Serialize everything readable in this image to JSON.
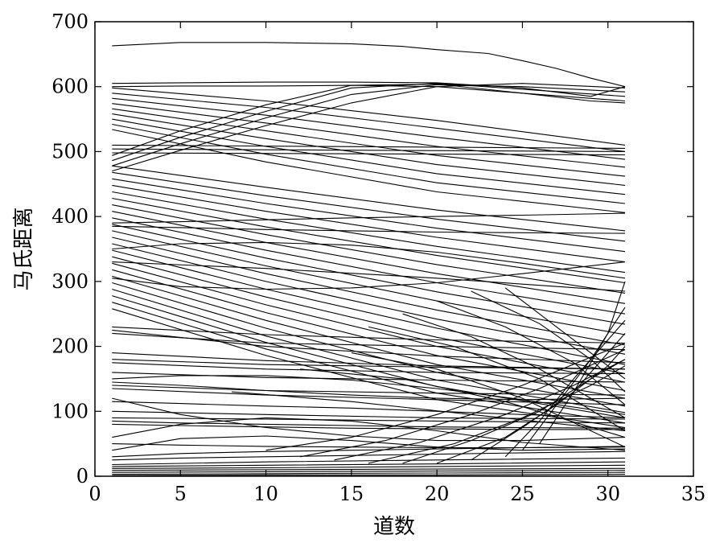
{
  "chart_data": {
    "type": "line",
    "title": "",
    "xlabel": "道数",
    "ylabel": "马氏距离",
    "xlim": [
      0,
      35
    ],
    "ylim": [
      0,
      700
    ],
    "xticks": [
      "0",
      "5",
      "10",
      "15",
      "20",
      "25",
      "30",
      "35"
    ],
    "yticks": [
      "0",
      "100",
      "200",
      "300",
      "400",
      "500",
      "600",
      "700"
    ],
    "grid": false,
    "legend": "none",
    "line_color": "#000000",
    "x_range_of_series": [
      1,
      31
    ],
    "series": [
      {
        "x": [
          1,
          5,
          10,
          15,
          18,
          20,
          23,
          25,
          27,
          29,
          31
        ],
        "y": [
          663,
          668,
          668,
          666,
          662,
          657,
          651,
          640,
          628,
          613,
          600
        ]
      },
      {
        "x": [
          1,
          5,
          10,
          15,
          20,
          25,
          29,
          31
        ],
        "y": [
          605,
          606,
          607,
          607,
          606,
          598,
          585,
          600
        ]
      },
      {
        "x": [
          1,
          5,
          10,
          15,
          20,
          25,
          29,
          31
        ],
        "y": [
          600,
          601,
          601,
          602,
          600,
          590,
          578,
          575
        ]
      },
      {
        "x": [
          1,
          5,
          10,
          15,
          20,
          25,
          31
        ],
        "y": [
          470,
          502,
          540,
          575,
          600,
          605,
          598
        ]
      },
      {
        "x": [
          1,
          5,
          10,
          15,
          20,
          25,
          31
        ],
        "y": [
          478,
          512,
          552,
          588,
          603,
          600,
          592
        ]
      },
      {
        "x": [
          1,
          5,
          10,
          15,
          20,
          25,
          31
        ],
        "y": [
          486,
          522,
          562,
          598,
          605,
          596,
          585
        ]
      },
      {
        "x": [
          1,
          5,
          10,
          15,
          20,
          25,
          31
        ],
        "y": [
          494,
          532,
          572,
          602,
          604,
          590,
          578
        ]
      },
      {
        "x": [
          1,
          10,
          20,
          31
        ],
        "y": [
          598,
          578,
          548,
          510
        ]
      },
      {
        "x": [
          1,
          10,
          20,
          31
        ],
        "y": [
          590,
          568,
          536,
          500
        ]
      },
      {
        "x": [
          1,
          10,
          20,
          31
        ],
        "y": [
          582,
          556,
          522,
          488
        ]
      },
      {
        "x": [
          1,
          10,
          20,
          31
        ],
        "y": [
          574,
          544,
          508,
          476
        ]
      },
      {
        "x": [
          1,
          10,
          20,
          31
        ],
        "y": [
          566,
          532,
          494,
          462
        ]
      },
      {
        "x": [
          1,
          10,
          20,
          31
        ],
        "y": [
          558,
          520,
          480,
          448
        ]
      },
      {
        "x": [
          1,
          10,
          20,
          31
        ],
        "y": [
          550,
          508,
          466,
          434
        ]
      },
      {
        "x": [
          1,
          10,
          20,
          31
        ],
        "y": [
          542,
          496,
          452,
          420
        ]
      },
      {
        "x": [
          1,
          10,
          20,
          31
        ],
        "y": [
          534,
          484,
          438,
          406
        ]
      },
      {
        "x": [
          1,
          31
        ],
        "y": [
          510,
          505
        ]
      },
      {
        "x": [
          1,
          31
        ],
        "y": [
          504,
          500
        ]
      },
      {
        "x": [
          1,
          31
        ],
        "y": [
          498,
          495
        ]
      },
      {
        "x": [
          1,
          10,
          20,
          31
        ],
        "y": [
          478,
          445,
          410,
          378
        ]
      },
      {
        "x": [
          1,
          10,
          20,
          31
        ],
        "y": [
          468,
          432,
          396,
          362
        ]
      },
      {
        "x": [
          1,
          10,
          20,
          31
        ],
        "y": [
          458,
          420,
          382,
          346
        ]
      },
      {
        "x": [
          1,
          10,
          20,
          31
        ],
        "y": [
          448,
          408,
          368,
          330
        ]
      },
      {
        "x": [
          1,
          10,
          20,
          31
        ],
        "y": [
          438,
          396,
          354,
          314
        ]
      },
      {
        "x": [
          1,
          10,
          20,
          31
        ],
        "y": [
          428,
          384,
          340,
          298
        ]
      },
      {
        "x": [
          1,
          10,
          20,
          31
        ],
        "y": [
          418,
          372,
          326,
          282
        ]
      },
      {
        "x": [
          1,
          10,
          20,
          31
        ],
        "y": [
          408,
          360,
          312,
          266
        ]
      },
      {
        "x": [
          1,
          10,
          20,
          31
        ],
        "y": [
          398,
          348,
          298,
          250
        ]
      },
      {
        "x": [
          1,
          10,
          20,
          31
        ],
        "y": [
          388,
          336,
          284,
          234
        ]
      },
      {
        "x": [
          1,
          10,
          20,
          31
        ],
        "y": [
          378,
          324,
          270,
          218
        ]
      },
      {
        "x": [
          1,
          10,
          20,
          31
        ],
        "y": [
          368,
          312,
          256,
          202
        ]
      },
      {
        "x": [
          1,
          10,
          20,
          31
        ],
        "y": [
          358,
          300,
          242,
          188
        ]
      },
      {
        "x": [
          1,
          10,
          20,
          31
        ],
        "y": [
          348,
          288,
          228,
          172
        ]
      },
      {
        "x": [
          1,
          10,
          20,
          31
        ],
        "y": [
          338,
          276,
          214,
          158
        ]
      },
      {
        "x": [
          1,
          10,
          20,
          31
        ],
        "y": [
          328,
          264,
          200,
          145
        ]
      },
      {
        "x": [
          1,
          10,
          20,
          31
        ],
        "y": [
          318,
          252,
          186,
          132
        ]
      },
      {
        "x": [
          1,
          10,
          20,
          31
        ],
        "y": [
          308,
          240,
          172,
          120
        ]
      },
      {
        "x": [
          1,
          10,
          20,
          31
        ],
        "y": [
          298,
          228,
          160,
          108
        ]
      },
      {
        "x": [
          1,
          10,
          20,
          31
        ],
        "y": [
          288,
          216,
          148,
          98
        ]
      },
      {
        "x": [
          1,
          10,
          20,
          31
        ],
        "y": [
          278,
          206,
          138,
          90
        ]
      },
      {
        "x": [
          1,
          10,
          20,
          31
        ],
        "y": [
          268,
          196,
          128,
          82
        ]
      },
      {
        "x": [
          1,
          10,
          20,
          31
        ],
        "y": [
          258,
          186,
          118,
          75
        ]
      },
      {
        "x": [
          1,
          5,
          10,
          15,
          20,
          25,
          31
        ],
        "y": [
          390,
          392,
          395,
          398,
          400,
          402,
          405
        ]
      },
      {
        "x": [
          1,
          5,
          10,
          15,
          20,
          25,
          31
        ],
        "y": [
          385,
          383,
          380,
          378,
          376,
          375,
          374
        ]
      },
      {
        "x": [
          1,
          5,
          10,
          15,
          20,
          25,
          31
        ],
        "y": [
          305,
          292,
          288,
          290,
          298,
          312,
          330
        ]
      },
      {
        "x": [
          1,
          5,
          10,
          15,
          20,
          25,
          31
        ],
        "y": [
          350,
          358,
          360,
          356,
          345,
          328,
          305
        ]
      },
      {
        "x": [
          1,
          10,
          20,
          31
        ],
        "y": [
          330,
          320,
          305,
          285
        ]
      },
      {
        "x": [
          1,
          10,
          20,
          31
        ],
        "y": [
          230,
          218,
          210,
          205
        ]
      },
      {
        "x": [
          1,
          10,
          20,
          31
        ],
        "y": [
          225,
          200,
          185,
          175
        ]
      },
      {
        "x": [
          1,
          10,
          20,
          31
        ],
        "y": [
          220,
          205,
          200,
          195
        ]
      },
      {
        "x": [
          1,
          10,
          20,
          31
        ],
        "y": [
          190,
          178,
          170,
          165
        ]
      },
      {
        "x": [
          1,
          10,
          20,
          31
        ],
        "y": [
          180,
          172,
          168,
          165
        ]
      },
      {
        "x": [
          1,
          10,
          20,
          31
        ],
        "y": [
          175,
          165,
          160,
          158
        ]
      },
      {
        "x": [
          1,
          10,
          20,
          31
        ],
        "y": [
          160,
          152,
          148,
          145
        ]
      },
      {
        "x": [
          1,
          5,
          10,
          15,
          20,
          25,
          31
        ],
        "y": [
          150,
          155,
          155,
          148,
          135,
          118,
          95
        ]
      },
      {
        "x": [
          1,
          5,
          10,
          15,
          20,
          25,
          31
        ],
        "y": [
          145,
          140,
          132,
          125,
          120,
          118,
          120
        ]
      },
      {
        "x": [
          1,
          10,
          20,
          31
        ],
        "y": [
          140,
          132,
          128,
          125
        ]
      },
      {
        "x": [
          1,
          10,
          20,
          31
        ],
        "y": [
          135,
          125,
          118,
          110
        ]
      },
      {
        "x": [
          1,
          5,
          10,
          15,
          20,
          25,
          31
        ],
        "y": [
          120,
          95,
          75,
          62,
          55,
          55,
          60
        ]
      },
      {
        "x": [
          1,
          5,
          10,
          15,
          20,
          25,
          31
        ],
        "y": [
          115,
          112,
          108,
          105,
          100,
          95,
          90
        ]
      },
      {
        "x": [
          1,
          10,
          20,
          31
        ],
        "y": [
          100,
          95,
          90,
          88
        ]
      },
      {
        "x": [
          1,
          10,
          20,
          31
        ],
        "y": [
          90,
          88,
          85,
          82
        ]
      },
      {
        "x": [
          1,
          5,
          10,
          15,
          20,
          25,
          31
        ],
        "y": [
          85,
          82,
          80,
          78,
          76,
          75,
          74
        ]
      },
      {
        "x": [
          1,
          5,
          10,
          15,
          20,
          25,
          31
        ],
        "y": [
          80,
          78,
          76,
          74,
          73,
          72,
          72
        ]
      },
      {
        "x": [
          1,
          5,
          10,
          15,
          20,
          25,
          31
        ],
        "y": [
          60,
          80,
          90,
          85,
          70,
          52,
          40
        ]
      },
      {
        "x": [
          1,
          5,
          10,
          15,
          20,
          25,
          31
        ],
        "y": [
          50,
          48,
          46,
          45,
          44,
          44,
          45
        ]
      },
      {
        "x": [
          1,
          5,
          10,
          15,
          20,
          25,
          31
        ],
        "y": [
          40,
          58,
          62,
          55,
          45,
          40,
          42
        ]
      },
      {
        "x": [
          1,
          5,
          10,
          15,
          20,
          25,
          31
        ],
        "y": [
          30,
          35,
          38,
          40,
          42,
          44,
          46
        ]
      },
      {
        "x": [
          1,
          5,
          10,
          15,
          20,
          25,
          31
        ],
        "y": [
          25,
          28,
          30,
          32,
          34,
          36,
          38
        ]
      },
      {
        "x": [
          1,
          10,
          20,
          31
        ],
        "y": [
          18,
          22,
          25,
          28
        ]
      },
      {
        "x": [
          1,
          10,
          20,
          31
        ],
        "y": [
          15,
          17,
          19,
          22
        ]
      },
      {
        "x": [
          1,
          10,
          20,
          31
        ],
        "y": [
          12,
          13,
          15,
          17
        ]
      },
      {
        "x": [
          1,
          10,
          20,
          31
        ],
        "y": [
          9,
          10,
          11,
          12
        ]
      },
      {
        "x": [
          1,
          10,
          20,
          31
        ],
        "y": [
          6,
          7,
          8,
          9
        ]
      },
      {
        "x": [
          1,
          10,
          20,
          31
        ],
        "y": [
          3,
          4,
          5,
          6
        ]
      },
      {
        "x": [
          1,
          10,
          20,
          31
        ],
        "y": [
          1,
          2,
          2,
          3
        ]
      },
      {
        "x": [
          10,
          15,
          20,
          25,
          31
        ],
        "y": [
          40,
          60,
          95,
          140,
          205
        ]
      },
      {
        "x": [
          12,
          17,
          22,
          26,
          31
        ],
        "y": [
          30,
          55,
          95,
          135,
          195
        ]
      },
      {
        "x": [
          14,
          19,
          24,
          28,
          31
        ],
        "y": [
          25,
          52,
          95,
          140,
          180
        ]
      },
      {
        "x": [
          16,
          21,
          25,
          29,
          31
        ],
        "y": [
          20,
          50,
          90,
          140,
          170
        ]
      },
      {
        "x": [
          18,
          22,
          26,
          29,
          31
        ],
        "y": [
          20,
          55,
          100,
          150,
          180
        ]
      },
      {
        "x": [
          20,
          24,
          27,
          30,
          31
        ],
        "y": [
          20,
          60,
          110,
          170,
          200
        ]
      },
      {
        "x": [
          22,
          25,
          28,
          30,
          31
        ],
        "y": [
          25,
          75,
          130,
          190,
          220
        ]
      },
      {
        "x": [
          24,
          26,
          28,
          30,
          31
        ],
        "y": [
          30,
          85,
          150,
          210,
          240
        ]
      },
      {
        "x": [
          25,
          27,
          29,
          31
        ],
        "y": [
          40,
          110,
          180,
          260
        ]
      },
      {
        "x": [
          26,
          28,
          30,
          31
        ],
        "y": [
          50,
          130,
          220,
          300
        ]
      },
      {
        "x": [
          15,
          20,
          25,
          31
        ],
        "y": [
          190,
          165,
          120,
          45
        ]
      },
      {
        "x": [
          16,
          21,
          26,
          31
        ],
        "y": [
          230,
          200,
          150,
          70
        ]
      },
      {
        "x": [
          18,
          22,
          26,
          31
        ],
        "y": [
          250,
          215,
          165,
          90
        ]
      },
      {
        "x": [
          20,
          24,
          28,
          31
        ],
        "y": [
          270,
          230,
          175,
          110
        ]
      },
      {
        "x": [
          22,
          26,
          29,
          31
        ],
        "y": [
          285,
          235,
          180,
          130
        ]
      },
      {
        "x": [
          24,
          27,
          30,
          31
        ],
        "y": [
          290,
          230,
          170,
          150
        ]
      },
      {
        "x": [
          12,
          18,
          24,
          31
        ],
        "y": [
          165,
          150,
          115,
          60
        ]
      },
      {
        "x": [
          8,
          15,
          22,
          31
        ],
        "y": [
          130,
          115,
          95,
          70
        ]
      }
    ]
  }
}
